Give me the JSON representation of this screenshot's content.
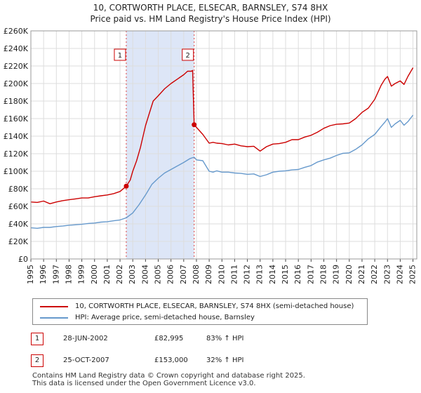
{
  "title_line1": "10, CORTWORTH PLACE, ELSECAR, BARNSLEY, S74 8HX",
  "title_line2": "Price paid vs. HM Land Registry's House Price Index (HPI)",
  "colors": {
    "property": "#cc0000",
    "hpi": "#6699cc",
    "shade": "#dde6f7",
    "grid": "#dddddd",
    "marker_line": "#dd4444"
  },
  "chart_data": {
    "type": "line",
    "title": "10, CORTWORTH PLACE, ELSECAR, BARNSLEY, S74 8HX",
    "subtitle": "Price paid vs. HM Land Registry's House Price Index (HPI)",
    "xlabel": "",
    "ylabel": "",
    "xlim": [
      1995,
      2025.3
    ],
    "ylim": [
      0,
      260000
    ],
    "grid": true,
    "x_ticks": [
      1995,
      1996,
      1997,
      1998,
      1999,
      2000,
      2001,
      2002,
      2003,
      2004,
      2005,
      2006,
      2007,
      2008,
      2009,
      2010,
      2011,
      2012,
      2013,
      2014,
      2015,
      2016,
      2017,
      2018,
      2019,
      2020,
      2021,
      2022,
      2023,
      2024,
      2025
    ],
    "y_ticks": [
      {
        "value": 0,
        "label": "£0"
      },
      {
        "value": 20000,
        "label": "£20K"
      },
      {
        "value": 40000,
        "label": "£40K"
      },
      {
        "value": 60000,
        "label": "£60K"
      },
      {
        "value": 80000,
        "label": "£80K"
      },
      {
        "value": 100000,
        "label": "£100K"
      },
      {
        "value": 120000,
        "label": "£120K"
      },
      {
        "value": 140000,
        "label": "£140K"
      },
      {
        "value": 160000,
        "label": "£160K"
      },
      {
        "value": 180000,
        "label": "£180K"
      },
      {
        "value": 200000,
        "label": "£200K"
      },
      {
        "value": 220000,
        "label": "£220K"
      },
      {
        "value": 240000,
        "label": "£240K"
      },
      {
        "value": 260000,
        "label": "£260K"
      }
    ],
    "shaded_region": [
      2002.49,
      2007.82
    ],
    "events": [
      {
        "label": "1",
        "x": 2002.49,
        "y": 82995
      },
      {
        "label": "2",
        "x": 2007.82,
        "y": 153000
      }
    ],
    "series": [
      {
        "name": "10, CORTWORTH PLACE, ELSECAR, BARNSLEY, S74 8HX (semi-detached house)",
        "x": [
          1995.0,
          1995.5,
          1996.0,
          1996.5,
          1997.0,
          1997.5,
          1998.0,
          1998.5,
          1999.0,
          1999.5,
          2000.0,
          2000.5,
          2001.0,
          2001.5,
          2002.0,
          2002.49,
          2002.8,
          2003.0,
          2003.3,
          2003.6,
          2004.0,
          2004.3,
          2004.6,
          2005.0,
          2005.5,
          2006.0,
          2006.5,
          2007.0,
          2007.3,
          2007.6,
          2007.7,
          2007.82,
          2008.0,
          2008.5,
          2009.0,
          2009.3,
          2009.6,
          2010.0,
          2010.5,
          2011.0,
          2011.5,
          2012.0,
          2012.5,
          2013.0,
          2013.5,
          2014.0,
          2014.5,
          2015.0,
          2015.5,
          2016.0,
          2016.5,
          2017.0,
          2017.5,
          2018.0,
          2018.5,
          2019.0,
          2019.5,
          2020.0,
          2020.5,
          2021.0,
          2021.5,
          2022.0,
          2022.5,
          2022.8,
          2023.0,
          2023.3,
          2023.6,
          2024.0,
          2024.3,
          2024.6,
          2025.0
        ],
        "values": [
          65000,
          64500,
          66000,
          63000,
          65000,
          66500,
          67500,
          68500,
          69500,
          69500,
          71000,
          72000,
          73000,
          74500,
          77000,
          82995,
          90000,
          100000,
          112000,
          127000,
          152000,
          166000,
          180000,
          186000,
          194000,
          200000,
          205000,
          210000,
          214000,
          214000,
          215000,
          153000,
          150000,
          142000,
          132000,
          133000,
          132000,
          131500,
          130000,
          131000,
          129000,
          128000,
          128500,
          123000,
          128000,
          131000,
          131500,
          133000,
          136000,
          136000,
          139000,
          141000,
          144500,
          149000,
          152000,
          153500,
          154000,
          155000,
          160000,
          167000,
          172000,
          182000,
          198000,
          205000,
          208000,
          197000,
          200000,
          203000,
          199000,
          208000,
          218000
        ]
      },
      {
        "name": "HPI: Average price, semi-detached house, Barnsley",
        "x": [
          1995.0,
          1995.5,
          1996.0,
          1996.5,
          1997.0,
          1997.5,
          1998.0,
          1998.5,
          1999.0,
          1999.5,
          2000.0,
          2000.5,
          2001.0,
          2001.5,
          2002.0,
          2002.5,
          2003.0,
          2003.5,
          2004.0,
          2004.5,
          2005.0,
          2005.5,
          2006.0,
          2006.5,
          2007.0,
          2007.5,
          2007.82,
          2008.0,
          2008.5,
          2009.0,
          2009.3,
          2009.6,
          2010.0,
          2010.5,
          2011.0,
          2011.5,
          2012.0,
          2012.5,
          2013.0,
          2013.5,
          2014.0,
          2014.5,
          2015.0,
          2015.5,
          2016.0,
          2016.5,
          2017.0,
          2017.5,
          2018.0,
          2018.5,
          2019.0,
          2019.5,
          2020.0,
          2020.5,
          2021.0,
          2021.5,
          2022.0,
          2022.5,
          2022.8,
          2023.0,
          2023.3,
          2023.6,
          2024.0,
          2024.3,
          2024.6,
          2025.0
        ],
        "values": [
          35500,
          35000,
          36000,
          36000,
          37000,
          37500,
          38500,
          39000,
          39500,
          40500,
          41000,
          42000,
          42500,
          43500,
          44500,
          47000,
          52500,
          62000,
          73000,
          85000,
          92000,
          98000,
          102000,
          106000,
          110000,
          114500,
          116000,
          113000,
          112000,
          100000,
          99000,
          100500,
          99000,
          99000,
          98000,
          97500,
          96500,
          97000,
          94000,
          96000,
          99000,
          100000,
          100500,
          101500,
          102000,
          104500,
          106500,
          110500,
          113000,
          115000,
          118000,
          120500,
          121000,
          125000,
          130000,
          137000,
          142000,
          151000,
          156000,
          160000,
          150000,
          154000,
          158000,
          152500,
          156500,
          164000
        ]
      }
    ]
  },
  "legend": {
    "property_label": "10, CORTWORTH PLACE, ELSECAR, BARNSLEY, S74 8HX (semi-detached house)",
    "hpi_label": "HPI: Average price, semi-detached house, Barnsley"
  },
  "sales": [
    {
      "num": "1",
      "date": "28-JUN-2002",
      "price": "£82,995",
      "hpi": "83% ↑ HPI"
    },
    {
      "num": "2",
      "date": "25-OCT-2007",
      "price": "£153,000",
      "hpi": "32% ↑ HPI"
    }
  ],
  "footer_line1": "Contains HM Land Registry data © Crown copyright and database right 2025.",
  "footer_line2": "This data is licensed under the Open Government Licence v3.0."
}
